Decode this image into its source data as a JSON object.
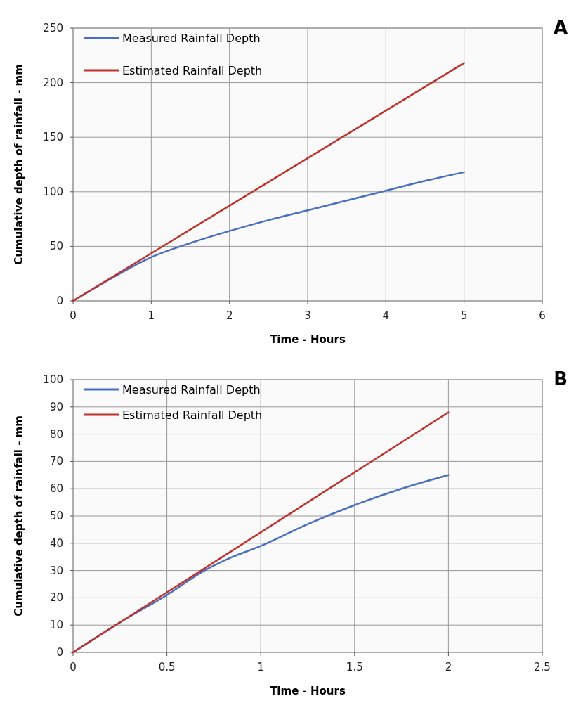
{
  "chart_data": [
    {
      "type": "line",
      "xlabel": "Time - Hours",
      "ylabel": "Cumulative depth of rainfall - mm",
      "annotations": [
        "A"
      ],
      "xlim": [
        0,
        6
      ],
      "xticks": [
        0,
        1,
        2,
        3,
        4,
        5,
        6
      ],
      "ylim": [
        0,
        250
      ],
      "yticks": [
        0,
        50,
        100,
        150,
        200,
        250
      ],
      "grid": true,
      "legend": "top left",
      "line_style": "solid",
      "series": [
        {
          "name": "Measured Rainfall Depth",
          "color": "#4a6fbf",
          "x": [
            0,
            0.5,
            1,
            1.5,
            2,
            2.5,
            3,
            3.5,
            4,
            4.5,
            5
          ],
          "values": [
            0,
            21,
            40,
            53,
            64,
            74,
            83,
            92,
            101,
            110,
            118
          ]
        },
        {
          "name": "Estimated Rainfall Depth",
          "color": "#c0302a",
          "x": [
            0,
            5
          ],
          "values": [
            0,
            218
          ]
        }
      ]
    },
    {
      "type": "line",
      "xlabel": "Time - Hours",
      "ylabel": "Cumulative depth of rainfall - mm",
      "annotations": [
        "B"
      ],
      "xlim": [
        0,
        2.5
      ],
      "xticks": [
        0,
        0.5,
        1,
        1.5,
        2,
        2.5
      ],
      "ylim": [
        0,
        100
      ],
      "yticks": [
        0,
        10,
        20,
        30,
        40,
        50,
        60,
        70,
        80,
        90,
        100
      ],
      "grid": true,
      "legend": "top left",
      "line_style": "solid",
      "series": [
        {
          "name": "Measured Rainfall Depth",
          "color": "#4a6fbf",
          "x": [
            0,
            0.25,
            0.5,
            0.7,
            0.85,
            1,
            1.25,
            1.5,
            1.75,
            2
          ],
          "values": [
            0,
            11,
            21,
            30,
            35,
            39,
            47,
            54,
            60,
            65
          ]
        },
        {
          "name": "Estimated Rainfall Depth",
          "color": "#c0302a",
          "x": [
            0,
            2
          ],
          "values": [
            0,
            88
          ]
        }
      ]
    }
  ]
}
